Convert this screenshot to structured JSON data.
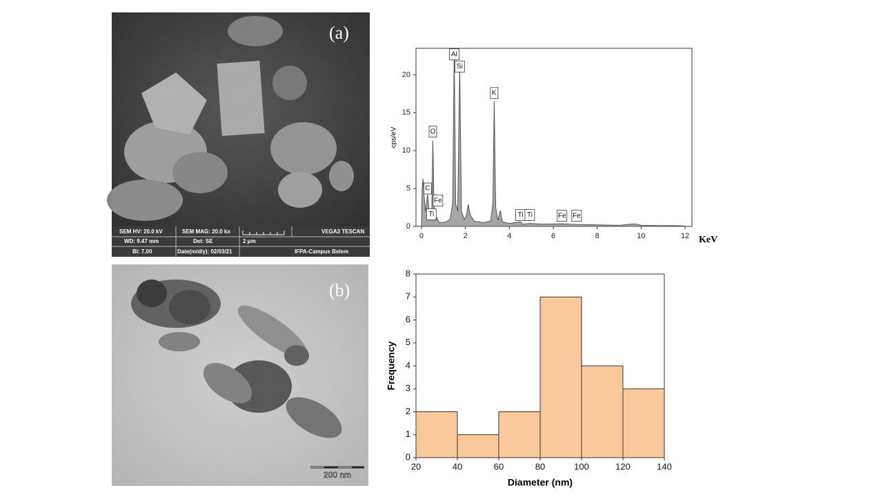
{
  "images": {
    "sem": {
      "panel_label": "(a)",
      "info": [
        "SEM HV: 20.0 kV",
        "SEM MAG: 20.0 kx",
        "VEGA3 TESCAN",
        "WD: 9.47 mm",
        "Det: SE",
        "2 μm",
        "BI: 7.00",
        "Date(m/d/y): 02/03/21",
        "IFPA-Campus Belem"
      ]
    },
    "tem": {
      "panel_label": "(b)",
      "scale_bar": "200 nm"
    }
  },
  "chart_data": [
    {
      "type": "area",
      "x_label": "KeV",
      "y_label": "cps/eV",
      "color": "#a6a6a6",
      "line_color": "#555555",
      "x": [
        0,
        0.03,
        0.07,
        0.12,
        0.18,
        0.25,
        0.28,
        0.33,
        0.4,
        0.47,
        0.52,
        0.57,
        0.63,
        0.7,
        0.78,
        0.9,
        1.1,
        1.3,
        1.42,
        1.49,
        1.56,
        1.65,
        1.74,
        1.82,
        1.95,
        2.05,
        2.13,
        2.22,
        2.4,
        2.8,
        3.15,
        3.25,
        3.31,
        3.38,
        3.48,
        3.59,
        3.68,
        4.0,
        4.51,
        4.6,
        4.93,
        5.5,
        6.4,
        7.06,
        8.0,
        9.0,
        9.71,
        10.0,
        11.0,
        11.5,
        12.0
      ],
      "values": [
        0,
        5,
        6.3,
        4,
        2,
        3.5,
        4.2,
        2.5,
        1,
        2,
        11.3,
        3,
        0.8,
        1.2,
        0.6,
        0.5,
        0.6,
        0.9,
        3,
        23,
        3,
        2,
        21.5,
        2,
        0.9,
        1.5,
        2.9,
        1.5,
        0.7,
        0.5,
        0.7,
        3,
        16.5,
        2.5,
        0.8,
        2.1,
        0.6,
        0.4,
        0.6,
        0.3,
        0.4,
        0.3,
        0.35,
        0.25,
        0.2,
        0.15,
        0.35,
        0.15,
        0.1,
        0.12,
        0.05
      ],
      "annotations": [
        {
          "text": "Al",
          "x": 1.49,
          "y": 22.7
        },
        {
          "text": "Si",
          "x": 1.74,
          "y": 21.1
        },
        {
          "text": "O",
          "x": 0.52,
          "y": 12.5
        },
        {
          "text": "K",
          "x": 3.31,
          "y": 17.6
        },
        {
          "text": "C",
          "x": 0.28,
          "y": 5
        },
        {
          "text": "Fe",
          "x": 0.75,
          "y": 3.4
        },
        {
          "text": "Ti",
          "x": 0.45,
          "y": 1.6
        },
        {
          "text": "Ti",
          "x": 4.51,
          "y": 1.5
        },
        {
          "text": "Ti",
          "x": 4.93,
          "y": 1.5
        },
        {
          "text": "Fe",
          "x": 6.4,
          "y": 1.4
        },
        {
          "text": "Fe",
          "x": 7.06,
          "y": 1.4
        }
      ],
      "xlim": [
        -0.25,
        12.31
      ],
      "ylim": [
        0,
        23.5
      ],
      "xticks": [
        0,
        2,
        4,
        6,
        8,
        10,
        12
      ],
      "yticks": [
        0,
        5,
        10,
        15,
        20
      ]
    },
    {
      "type": "histogram",
      "x_label": "Diameter (nm)",
      "y_label": "Frequency",
      "color": "#f9c89b",
      "bins": [
        20,
        40,
        60,
        80,
        100,
        120,
        140
      ],
      "values": [
        2,
        1,
        2,
        7,
        4,
        3
      ],
      "xlim": [
        20,
        140
      ],
      "ylim": [
        0,
        8
      ],
      "xticks": [
        20,
        40,
        60,
        80,
        100,
        120,
        140
      ],
      "yticks": [
        0,
        1,
        2,
        3,
        4,
        5,
        6,
        7,
        8
      ]
    }
  ]
}
